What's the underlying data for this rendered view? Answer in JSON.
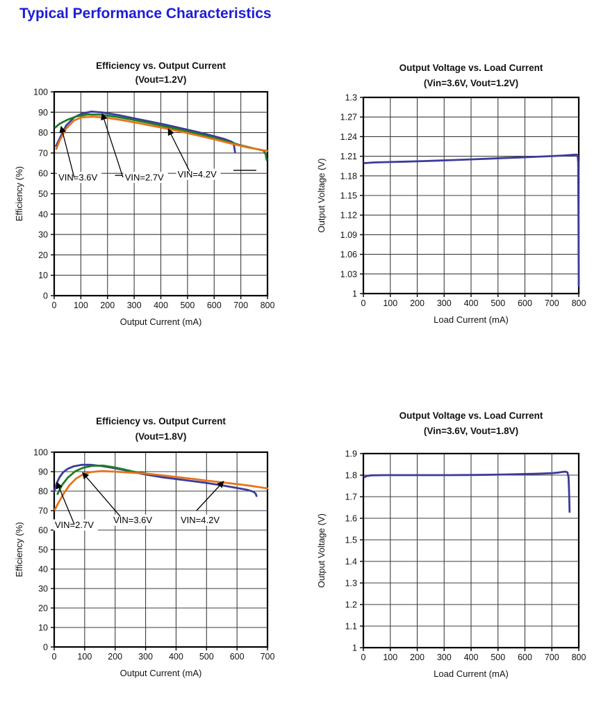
{
  "page": {
    "heading": "Typical Performance Characteristics",
    "heading_color": "#1d1dd6",
    "background": "#ffffff"
  },
  "colors": {
    "blue": "#3b3b9d",
    "green": "#1e7e22",
    "orange": "#e6731c",
    "grid": "#3d3d3d",
    "axis": "#000000",
    "text": "#111111"
  },
  "chart_data": [
    {
      "id": "efficiency-vs-output-current-vout-1.2v",
      "type": "line",
      "title": "Efficiency vs. Output Current",
      "subtitle": "(Vout=1.2V)",
      "xlabel": "Output Current (mA)",
      "ylabel": "Efficiency (%)",
      "xlim": [
        0,
        800
      ],
      "ylim": [
        0,
        100
      ],
      "xticks": [
        0,
        100,
        200,
        300,
        400,
        500,
        600,
        700,
        800
      ],
      "yticks": [
        0,
        10,
        20,
        30,
        40,
        50,
        60,
        70,
        80,
        90,
        100
      ],
      "grid": true,
      "legend_position": "in-plot arrow annotations",
      "series": [
        {
          "name": "VIN=2.7V",
          "color_key": "blue",
          "points": [
            [
              7,
              73.4
            ],
            [
              22,
              77.5
            ],
            [
              45,
              83.5
            ],
            [
              75,
              87.5
            ],
            [
              105,
              89.4
            ],
            [
              140,
              90.3
            ],
            [
              180,
              89.9
            ],
            [
              240,
              88.6
            ],
            [
              300,
              87
            ],
            [
              360,
              85.4
            ],
            [
              420,
              83.8
            ],
            [
              480,
              82
            ],
            [
              540,
              80.2
            ],
            [
              600,
              78.2
            ],
            [
              640,
              76.8
            ],
            [
              660,
              75.8
            ],
            [
              672,
              75
            ],
            [
              676,
              72.5
            ],
            [
              678,
              70.5
            ]
          ]
        },
        {
          "name": "VIN=3.6V",
          "color_key": "green",
          "points": [
            [
              4,
              82.5
            ],
            [
              20,
              84.3
            ],
            [
              50,
              86.3
            ],
            [
              85,
              88
            ],
            [
              125,
              88.9
            ],
            [
              170,
              88.8
            ],
            [
              230,
              87.8
            ],
            [
              290,
              86.4
            ],
            [
              360,
              84.6
            ],
            [
              430,
              82.6
            ],
            [
              500,
              80.6
            ],
            [
              570,
              78.4
            ],
            [
              640,
              76
            ],
            [
              700,
              73.8
            ],
            [
              750,
              72.2
            ],
            [
              785,
              71.2
            ],
            [
              793,
              69.5
            ],
            [
              797,
              66.5
            ]
          ]
        },
        {
          "name": "VIN=4.2V",
          "color_key": "orange",
          "points": [
            [
              8,
              72
            ],
            [
              20,
              76
            ],
            [
              45,
              82
            ],
            [
              75,
              86
            ],
            [
              105,
              87.5
            ],
            [
              145,
              87.8
            ],
            [
              200,
              87.2
            ],
            [
              260,
              86
            ],
            [
              330,
              84.3
            ],
            [
              400,
              82.5
            ],
            [
              470,
              80.6
            ],
            [
              540,
              78.6
            ],
            [
              610,
              76.4
            ],
            [
              670,
              74.4
            ],
            [
              730,
              72.6
            ],
            [
              775,
              71.6
            ],
            [
              800,
              71
            ]
          ]
        }
      ],
      "annotations": [
        {
          "text": "VIN=3.6V",
          "at": [
            16,
            56.5
          ],
          "arrow": [
            [
              75,
              58
            ],
            [
              26,
              83
            ]
          ]
        },
        {
          "text": "VIN=2.7V",
          "at": [
            265,
            56.5
          ],
          "dash": [
            [
              228,
              59
            ],
            [
              256,
              59
            ]
          ],
          "arrow": [
            [
              258,
              58
            ],
            [
              180,
              89.3
            ]
          ]
        },
        {
          "text": "VIN=4.2V",
          "at": [
            463,
            58
          ],
          "arrow": [
            [
              508,
              61
            ],
            [
              428,
              81.8
            ]
          ],
          "tail": [
            [
              672,
              61.5
            ],
            [
              758,
              61.5
            ]
          ]
        }
      ]
    },
    {
      "id": "output-voltage-vs-load-current-vout-1.2v",
      "type": "line",
      "title": "Output Voltage vs. Load Current",
      "subtitle": "(Vin=3.6V, Vout=1.2V)",
      "xlabel": "Load Current (mA)",
      "ylabel": "Output Voltage (V)",
      "xlim": [
        0,
        800
      ],
      "ylim": [
        1,
        1.3
      ],
      "xticks": [
        0,
        100,
        200,
        300,
        400,
        500,
        600,
        700,
        800
      ],
      "yticks": [
        1,
        1.03,
        1.06,
        1.09,
        1.12,
        1.15,
        1.18,
        1.21,
        1.24,
        1.27,
        1.3
      ],
      "grid": true,
      "series": [
        {
          "name": "Vout",
          "color_key": "blue",
          "points": [
            [
              3,
              1.1995
            ],
            [
              40,
              1.2005
            ],
            [
              100,
              1.2012
            ],
            [
              160,
              1.2018
            ],
            [
              220,
              1.2026
            ],
            [
              280,
              1.2034
            ],
            [
              340,
              1.2043
            ],
            [
              400,
              1.2052
            ],
            [
              460,
              1.2062
            ],
            [
              520,
              1.2072
            ],
            [
              580,
              1.2082
            ],
            [
              640,
              1.2092
            ],
            [
              700,
              1.2102
            ],
            [
              745,
              1.2112
            ],
            [
              775,
              1.212
            ],
            [
              790,
              1.2125
            ],
            [
              796,
              1.212
            ],
            [
              798,
              1.2
            ],
            [
              799,
              1.12
            ],
            [
              800,
              1.012
            ]
          ]
        }
      ],
      "annotations": []
    },
    {
      "id": "efficiency-vs-output-current-vout-1.8v",
      "type": "line",
      "title": "Efficiency vs. Output Current",
      "subtitle": "(Vout=1.8V)",
      "xlabel": "Output Current (mA)",
      "ylabel": "Efficiency (%)",
      "xlim": [
        0,
        700
      ],
      "ylim": [
        0,
        100
      ],
      "xticks": [
        0,
        100,
        200,
        300,
        400,
        500,
        600,
        700
      ],
      "yticks": [
        0,
        10,
        20,
        30,
        40,
        50,
        60,
        70,
        80,
        90,
        100
      ],
      "grid": true,
      "legend_position": "in-plot arrow annotations",
      "series": [
        {
          "name": "VIN=2.7V",
          "color_key": "blue",
          "points": [
            [
              1,
              80
            ],
            [
              8,
              84
            ],
            [
              18,
              87.3
            ],
            [
              30,
              89.8
            ],
            [
              45,
              91.5
            ],
            [
              65,
              92.8
            ],
            [
              90,
              93.5
            ],
            [
              120,
              93.5
            ],
            [
              155,
              92.9
            ],
            [
              195,
              91.9
            ],
            [
              240,
              90.5
            ],
            [
              290,
              88.8
            ],
            [
              350,
              87.2
            ],
            [
              400,
              86.2
            ],
            [
              450,
              85.2
            ],
            [
              500,
              84.2
            ],
            [
              550,
              83
            ],
            [
              600,
              81.6
            ],
            [
              635,
              80.6
            ],
            [
              655,
              79.6
            ],
            [
              662,
              78.5
            ],
            [
              664,
              77.5
            ]
          ]
        },
        {
          "name": "VIN=3.6V",
          "color_key": "green",
          "points": [
            [
              11,
              78.5
            ],
            [
              25,
              83
            ],
            [
              45,
              87
            ],
            [
              70,
              90.3
            ],
            [
              95,
              92
            ],
            [
              125,
              93
            ],
            [
              160,
              93.1
            ],
            [
              195,
              92.3
            ],
            [
              230,
              91.1
            ],
            [
              260,
              90
            ],
            [
              285,
              89.4
            ],
            [
              300,
              89.1
            ]
          ]
        },
        {
          "name": "VIN=4.2V",
          "color_key": "orange",
          "points": [
            [
              2,
              70.5
            ],
            [
              12,
              73.5
            ],
            [
              30,
              78.5
            ],
            [
              50,
              83
            ],
            [
              72,
              86.5
            ],
            [
              95,
              88.6
            ],
            [
              120,
              89.8
            ],
            [
              155,
              90.3
            ],
            [
              200,
              90
            ],
            [
              250,
              89.5
            ],
            [
              300,
              89
            ],
            [
              350,
              88.2
            ],
            [
              400,
              87.3
            ],
            [
              450,
              86.4
            ],
            [
              500,
              85.4
            ],
            [
              550,
              84.5
            ],
            [
              600,
              83.6
            ],
            [
              650,
              82.6
            ],
            [
              700,
              81.4
            ]
          ]
        }
      ],
      "annotations": [
        {
          "text": "VIN=2.7V",
          "at": [
            2,
            61
          ],
          "arrow": [
            [
              66,
              63
            ],
            [
              9,
              84.5
            ]
          ]
        },
        {
          "text": "VIN=3.6V",
          "at": [
            194,
            63.5
          ],
          "arrow": [
            [
              217,
              67
            ],
            [
              93,
              89.5
            ]
          ]
        },
        {
          "text": "VIN=4.2V",
          "at": [
            415,
            63.5
          ],
          "arrow": [
            [
              467,
              70
            ],
            [
              556,
              85
            ]
          ]
        }
      ]
    },
    {
      "id": "output-voltage-vs-load-current-vout-1.8v",
      "type": "line",
      "title": "Output Voltage vs. Load Current",
      "subtitle": "(Vin=3.6V, Vout=1.8V)",
      "xlabel": "Load Current (mA)",
      "ylabel": "Output Voltage (V)",
      "xlim": [
        0,
        800
      ],
      "ylim": [
        1,
        1.9
      ],
      "xticks": [
        0,
        100,
        200,
        300,
        400,
        500,
        600,
        700,
        800
      ],
      "yticks": [
        1,
        1.1,
        1.2,
        1.3,
        1.4,
        1.5,
        1.6,
        1.7,
        1.8,
        1.9
      ],
      "grid": true,
      "series": [
        {
          "name": "Vout",
          "color_key": "blue",
          "points": [
            [
              3,
              1.79
            ],
            [
              12,
              1.796
            ],
            [
              30,
              1.799
            ],
            [
              80,
              1.8
            ],
            [
              200,
              1.8
            ],
            [
              320,
              1.8
            ],
            [
              430,
              1.801
            ],
            [
              520,
              1.803
            ],
            [
              600,
              1.805
            ],
            [
              660,
              1.807
            ],
            [
              700,
              1.809
            ],
            [
              725,
              1.812
            ],
            [
              742,
              1.815
            ],
            [
              752,
              1.816
            ],
            [
              758,
              1.813
            ],
            [
              762,
              1.79
            ],
            [
              764,
              1.72
            ],
            [
              766,
              1.63
            ]
          ]
        }
      ],
      "annotations": []
    }
  ]
}
